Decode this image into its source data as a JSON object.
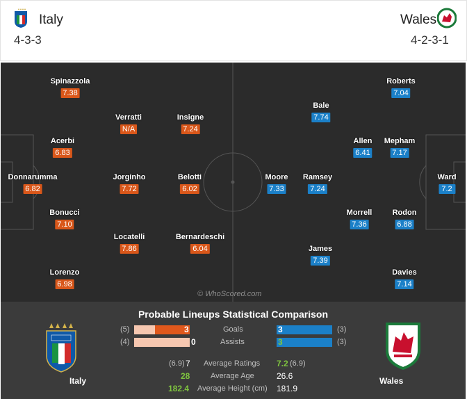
{
  "home": {
    "name": "Italy",
    "formation": "4-3-3",
    "players": [
      {
        "name": "Spinazzola",
        "rating": "7.38"
      },
      {
        "name": "Verratti",
        "rating": "N/A"
      },
      {
        "name": "Insigne",
        "rating": "7.24"
      },
      {
        "name": "Acerbi",
        "rating": "6.83"
      },
      {
        "name": "Donnarumma",
        "rating": "6.82"
      },
      {
        "name": "Jorginho",
        "rating": "7.72"
      },
      {
        "name": "Belotti",
        "rating": "6.02"
      },
      {
        "name": "Bonucci",
        "rating": "7.10"
      },
      {
        "name": "Locatelli",
        "rating": "7.86"
      },
      {
        "name": "Bernardeschi",
        "rating": "6.04"
      },
      {
        "name": "Lorenzo",
        "rating": "6.98"
      }
    ]
  },
  "away": {
    "name": "Wales",
    "formation": "4-2-3-1",
    "players": [
      {
        "name": "Roberts",
        "rating": "7.04"
      },
      {
        "name": "Bale",
        "rating": "7.74"
      },
      {
        "name": "Allen",
        "rating": "6.41"
      },
      {
        "name": "Mepham",
        "rating": "7.17"
      },
      {
        "name": "Moore",
        "rating": "7.33"
      },
      {
        "name": "Ramsey",
        "rating": "7.24"
      },
      {
        "name": "Ward",
        "rating": "7.2"
      },
      {
        "name": "Morrell",
        "rating": "7.36"
      },
      {
        "name": "Rodon",
        "rating": "6.88"
      },
      {
        "name": "James",
        "rating": "7.39"
      },
      {
        "name": "Davies",
        "rating": "7.14"
      }
    ]
  },
  "watermark": "© WhoScored.com",
  "comparison": {
    "title": "Probable Lineups Statistical Comparison",
    "home_label": "Italy",
    "away_label": "Wales",
    "goals": {
      "label": "Goals",
      "home_prev": "(5)",
      "home": "3",
      "away": "3",
      "away_prev": "(3)",
      "home_share": 1.0,
      "away_share": 1.0
    },
    "assists": {
      "label": "Assists",
      "home_prev": "(4)",
      "home": "0",
      "away": "3",
      "away_prev": "(3)",
      "home_share": 0.0,
      "away_share": 1.0
    },
    "ratings": {
      "label": "Average Ratings",
      "home_prev": "(6.9)",
      "home": "7",
      "away": "7.2",
      "away_prev": "(6.9)"
    },
    "age": {
      "label": "Average Age",
      "home": "28",
      "away": "26.6"
    },
    "height": {
      "label": "Average Height (cm)",
      "home": "182.4",
      "away": "181.9"
    }
  },
  "colors": {
    "home_rating": "#d9571a",
    "away_rating": "#1b80c8",
    "pitch": "#2b2b2b",
    "stats_bg": "#3b3b3b"
  }
}
